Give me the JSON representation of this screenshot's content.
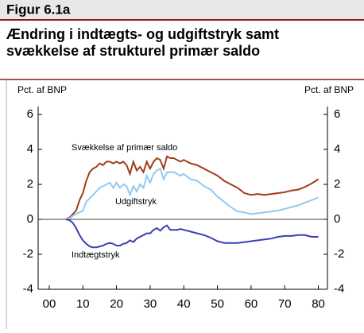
{
  "chart_data": {
    "type": "line",
    "header": "Figur 6.1a",
    "title": "Ændring i indtægts- og udgiftstryk samt svækkelse af strukturel primær saldo",
    "ylabel": "Pct. af BNP",
    "y2label": "Pct. af BNP",
    "x": [
      5,
      6,
      7,
      8,
      9,
      10,
      11,
      12,
      13,
      14,
      15,
      16,
      17,
      18,
      19,
      20,
      21,
      22,
      23,
      24,
      25,
      26,
      27,
      28,
      29,
      30,
      31,
      32,
      33,
      34,
      35,
      36,
      37,
      38,
      39,
      40,
      42,
      44,
      46,
      48,
      50,
      52,
      54,
      56,
      58,
      60,
      62,
      64,
      66,
      68,
      70,
      72,
      74,
      76,
      78,
      80
    ],
    "series": [
      {
        "name": "Svækkelse af primær saldo",
        "color": "#a23d1a",
        "values": [
          0,
          0.1,
          0.3,
          0.5,
          1.1,
          1.5,
          2.2,
          2.7,
          2.9,
          3.0,
          3.2,
          3.1,
          3.3,
          3.3,
          3.2,
          3.3,
          3.2,
          3.3,
          3.1,
          2.6,
          3.3,
          2.8,
          3.0,
          2.7,
          3.3,
          2.9,
          3.3,
          3.5,
          3.4,
          2.9,
          3.6,
          3.5,
          3.5,
          3.4,
          3.3,
          3.4,
          3.2,
          3.1,
          2.9,
          2.7,
          2.5,
          2.2,
          2.0,
          1.8,
          1.5,
          1.4,
          1.45,
          1.4,
          1.45,
          1.5,
          1.55,
          1.65,
          1.7,
          1.85,
          2.05,
          2.3
        ]
      },
      {
        "name": "Udgiftstryk",
        "color": "#93c9ee",
        "values": [
          0,
          0.05,
          0.2,
          0.3,
          0.4,
          0.5,
          1.0,
          1.2,
          1.4,
          1.6,
          1.8,
          1.9,
          2.0,
          2.1,
          1.8,
          2.1,
          1.8,
          2.0,
          1.9,
          1.4,
          1.9,
          1.6,
          2.0,
          1.8,
          2.5,
          2.1,
          2.6,
          2.8,
          2.9,
          2.3,
          2.7,
          2.7,
          2.7,
          2.6,
          2.5,
          2.6,
          2.3,
          2.2,
          1.9,
          1.7,
          1.3,
          1.0,
          0.7,
          0.45,
          0.4,
          0.3,
          0.35,
          0.4,
          0.45,
          0.5,
          0.6,
          0.7,
          0.8,
          0.95,
          1.1,
          1.25
        ]
      },
      {
        "name": "Indtægtstryk",
        "color": "#3b3fae",
        "values": [
          0,
          -0.05,
          -0.2,
          -0.5,
          -0.9,
          -1.2,
          -1.4,
          -1.55,
          -1.6,
          -1.6,
          -1.55,
          -1.5,
          -1.4,
          -1.35,
          -1.4,
          -1.5,
          -1.5,
          -1.4,
          -1.35,
          -1.2,
          -1.3,
          -1.1,
          -1.0,
          -0.9,
          -0.8,
          -0.8,
          -0.6,
          -0.5,
          -0.65,
          -0.45,
          -0.35,
          -0.6,
          -0.6,
          -0.6,
          -0.55,
          -0.6,
          -0.7,
          -0.8,
          -0.9,
          -1.05,
          -1.25,
          -1.35,
          -1.35,
          -1.35,
          -1.3,
          -1.25,
          -1.2,
          -1.15,
          -1.1,
          -1.0,
          -0.95,
          -0.95,
          -0.9,
          -0.9,
          -1.0,
          -1.0
        ]
      }
    ],
    "xlim": [
      -3.3,
      82.7
    ],
    "xticks": [
      {
        "value": 0,
        "label": "00"
      },
      10,
      20,
      30,
      40,
      50,
      60,
      70,
      80
    ],
    "ylim": [
      -4,
      6
    ],
    "yticks": [
      -4,
      -2,
      0,
      2,
      4,
      6
    ],
    "y2lim": [
      -4,
      6
    ],
    "y2ticks": [
      -4,
      -2,
      0,
      2,
      4,
      6
    ]
  }
}
